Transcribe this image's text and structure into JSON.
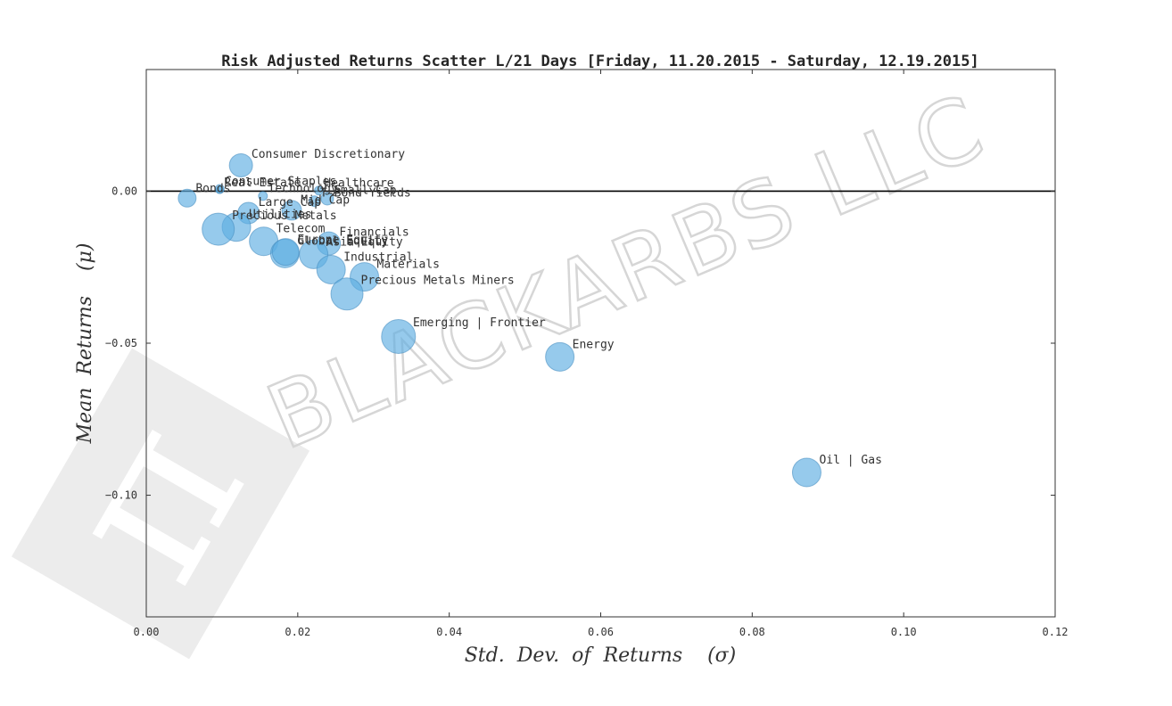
{
  "watermark": {
    "text": "BLACKARBS LLC"
  },
  "chart_data": {
    "type": "scatter",
    "title": "Risk Adjusted Returns Scatter L/21 Days [Friday, 11.20.2015 - Saturday, 12.19.2015]",
    "xlabel": "Std.  Dev.  of  Returns    (σ)",
    "ylabel": "Mean  Returns    (μ)",
    "xlim": [
      0.0,
      0.12
    ],
    "ylim": [
      -0.14,
      0.04
    ],
    "xticks": [
      {
        "value": 0.0,
        "label": "0.00"
      },
      {
        "value": 0.02,
        "label": "0.02"
      },
      {
        "value": 0.04,
        "label": "0.04"
      },
      {
        "value": 0.06,
        "label": "0.06"
      },
      {
        "value": 0.08,
        "label": "0.08"
      },
      {
        "value": 0.1,
        "label": "0.10"
      },
      {
        "value": 0.12,
        "label": "0.12"
      }
    ],
    "yticks": [
      {
        "value": 0.0,
        "label": "0.00"
      },
      {
        "value": -0.05,
        "label": "−0.05"
      },
      {
        "value": -0.1,
        "label": "−0.10"
      }
    ],
    "zero_line": true,
    "grid": false,
    "marker_color": "#5dade2",
    "points": [
      {
        "label": "Consumer Discretionary",
        "x": 0.0125,
        "y": 0.0085,
        "size": 13
      },
      {
        "label": "Consumer Staples",
        "x": 0.0097,
        "y": 0.0007,
        "size": 5
      },
      {
        "label": "Real Estate",
        "x": 0.0097,
        "y": 0.0004,
        "size": 4
      },
      {
        "label": "Healthcare",
        "x": 0.0228,
        "y": 0.0002,
        "size": 5
      },
      {
        "label": "Technology",
        "x": 0.0154,
        "y": -0.0016,
        "size": 5
      },
      {
        "label": "Small Cap",
        "x": 0.0239,
        "y": -0.0025,
        "size": 7
      },
      {
        "label": "Bonds",
        "x": 0.0054,
        "y": -0.0023,
        "size": 10
      },
      {
        "label": "T-Bond Yields",
        "x": 0.0222,
        "y": -0.0033,
        "size": 6
      },
      {
        "label": "Large Cap",
        "x": 0.0135,
        "y": -0.0072,
        "size": 12
      },
      {
        "label": "Mid Cap",
        "x": 0.0192,
        "y": -0.0063,
        "size": 11
      },
      {
        "label": "Utilities",
        "x": 0.0119,
        "y": -0.0118,
        "size": 16
      },
      {
        "label": "Precious Metals",
        "x": 0.0095,
        "y": -0.0125,
        "size": 18
      },
      {
        "label": "Telecom",
        "x": 0.0155,
        "y": -0.0165,
        "size": 16
      },
      {
        "label": "Financials",
        "x": 0.0241,
        "y": -0.0172,
        "size": 13
      },
      {
        "label": "Global Equity",
        "x": 0.0183,
        "y": -0.0205,
        "size": 16
      },
      {
        "label": "Europe Equity",
        "x": 0.0184,
        "y": -0.02,
        "size": 15
      },
      {
        "label": "Asia Equity",
        "x": 0.0221,
        "y": -0.0208,
        "size": 16
      },
      {
        "label": "Industrial",
        "x": 0.0244,
        "y": -0.0258,
        "size": 16
      },
      {
        "label": "Materials",
        "x": 0.0288,
        "y": -0.0282,
        "size": 16
      },
      {
        "label": "Precious Metals Miners",
        "x": 0.0265,
        "y": -0.0338,
        "size": 18
      },
      {
        "label": "Emerging | Frontier",
        "x": 0.0333,
        "y": -0.0478,
        "size": 19
      },
      {
        "label": "Energy",
        "x": 0.0546,
        "y": -0.0545,
        "size": 16
      },
      {
        "label": "Oil | Gas",
        "x": 0.0872,
        "y": -0.0925,
        "size": 16
      }
    ]
  }
}
